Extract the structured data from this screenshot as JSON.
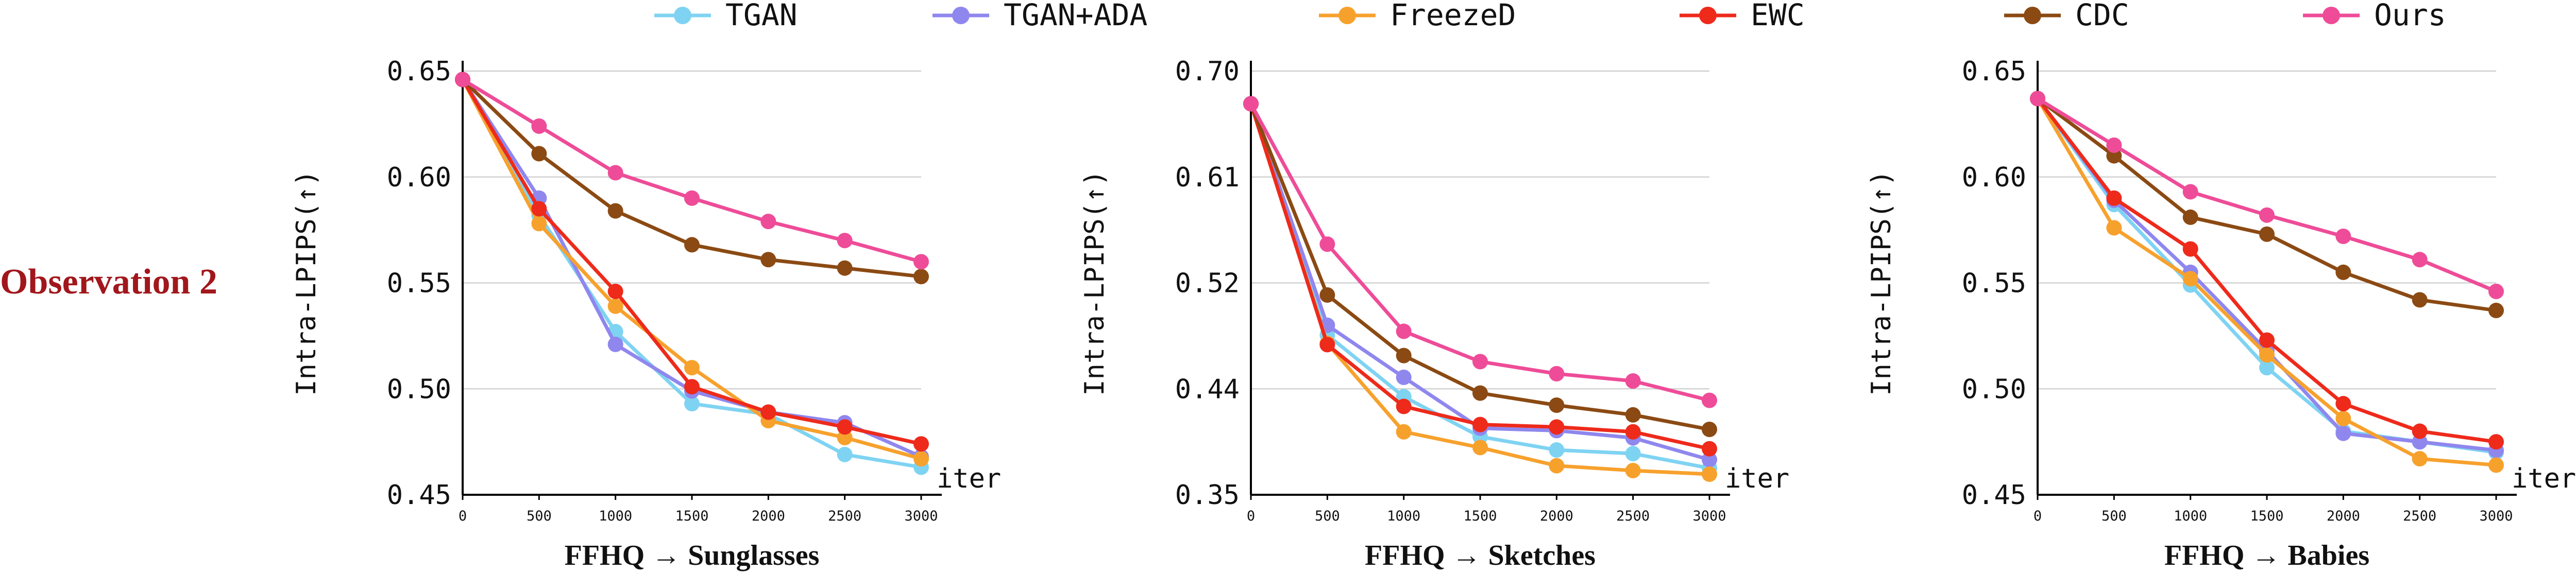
{
  "side_label": "Observation 2",
  "legend": [
    {
      "name": "TGAN",
      "color": "#7fd3f2"
    },
    {
      "name": "TGAN+ADA",
      "color": "#8f87ee"
    },
    {
      "name": "FreezeD",
      "color": "#f7a12d"
    },
    {
      "name": "EWC",
      "color": "#ee2a1b"
    },
    {
      "name": "CDC",
      "color": "#8b4a13"
    },
    {
      "name": "Ours",
      "color": "#ee4c98"
    }
  ],
  "chart_data": [
    {
      "type": "line",
      "title": "",
      "xlabel": "FFHQ → Sunglasses",
      "ylabel": "Intra-LPIPS(↑)",
      "x_end_label": "iter",
      "x": [
        0,
        500,
        1000,
        1500,
        2000,
        2500,
        3000
      ],
      "xlim": [
        0,
        3000
      ],
      "ylim": [
        0.45,
        0.65
      ],
      "yticks": [
        "0.45",
        "0.50",
        "0.55",
        "0.60",
        "0.65"
      ],
      "grid": true,
      "series": [
        {
          "name": "TGAN",
          "values": [
            0.646,
            0.582,
            0.527,
            0.493,
            0.488,
            0.469,
            0.463
          ]
        },
        {
          "name": "TGAN+ADA",
          "values": [
            0.646,
            0.59,
            0.521,
            0.499,
            0.489,
            0.484,
            0.468
          ]
        },
        {
          "name": "FreezeD",
          "values": [
            0.646,
            0.578,
            0.539,
            0.51,
            0.485,
            0.477,
            0.467
          ]
        },
        {
          "name": "EWC",
          "values": [
            0.646,
            0.585,
            0.546,
            0.501,
            0.489,
            0.482,
            0.474
          ]
        },
        {
          "name": "CDC",
          "values": [
            0.646,
            0.611,
            0.584,
            0.568,
            0.561,
            0.557,
            0.553
          ]
        },
        {
          "name": "Ours",
          "values": [
            0.646,
            0.624,
            0.602,
            0.59,
            0.579,
            0.57,
            0.56
          ]
        }
      ]
    },
    {
      "type": "line",
      "title": "",
      "xlabel": "FFHQ → Sketches",
      "ylabel": "Intra-LPIPS(↑)",
      "x_end_label": "iter",
      "x": [
        0,
        500,
        1000,
        1500,
        2000,
        2500,
        3000
      ],
      "xlim": [
        0,
        3000
      ],
      "ylim": [
        0.35,
        0.7
      ],
      "yticks": [
        "0.35",
        "0.44",
        "0.52",
        "0.61",
        "0.70"
      ],
      "grid": true,
      "series": [
        {
          "name": "TGAN",
          "values": [
            0.673,
            0.482,
            0.431,
            0.398,
            0.387,
            0.384,
            0.372
          ]
        },
        {
          "name": "TGAN+ADA",
          "values": [
            0.673,
            0.49,
            0.447,
            0.405,
            0.403,
            0.397,
            0.379
          ]
        },
        {
          "name": "FreezeD",
          "values": [
            0.673,
            0.475,
            0.402,
            0.389,
            0.374,
            0.37,
            0.367
          ]
        },
        {
          "name": "EWC",
          "values": [
            0.673,
            0.474,
            0.423,
            0.408,
            0.406,
            0.402,
            0.388
          ]
        },
        {
          "name": "CDC",
          "values": [
            0.673,
            0.515,
            0.465,
            0.434,
            0.424,
            0.416,
            0.404
          ]
        },
        {
          "name": "Ours",
          "values": [
            0.673,
            0.557,
            0.485,
            0.46,
            0.45,
            0.444,
            0.428
          ]
        }
      ]
    },
    {
      "type": "line",
      "title": "",
      "xlabel": "FFHQ → Babies",
      "ylabel": "Intra-LPIPS(↑)",
      "x_end_label": "iter",
      "x": [
        0,
        500,
        1000,
        1500,
        2000,
        2500,
        3000
      ],
      "xlim": [
        0,
        3000
      ],
      "ylim": [
        0.45,
        0.65
      ],
      "yticks": [
        "0.45",
        "0.50",
        "0.55",
        "0.60",
        "0.65"
      ],
      "grid": true,
      "series": [
        {
          "name": "TGAN",
          "values": [
            0.637,
            0.587,
            0.549,
            0.51,
            0.48,
            0.475,
            0.47
          ]
        },
        {
          "name": "TGAN+ADA",
          "values": [
            0.637,
            0.589,
            0.555,
            0.518,
            0.479,
            0.475,
            0.471
          ]
        },
        {
          "name": "FreezeD",
          "values": [
            0.637,
            0.576,
            0.552,
            0.516,
            0.486,
            0.467,
            0.464
          ]
        },
        {
          "name": "EWC",
          "values": [
            0.637,
            0.59,
            0.566,
            0.523,
            0.493,
            0.48,
            0.475
          ]
        },
        {
          "name": "CDC",
          "values": [
            0.637,
            0.61,
            0.581,
            0.573,
            0.555,
            0.542,
            0.537
          ]
        },
        {
          "name": "Ours",
          "values": [
            0.637,
            0.615,
            0.593,
            0.582,
            0.572,
            0.561,
            0.546
          ]
        }
      ]
    }
  ]
}
